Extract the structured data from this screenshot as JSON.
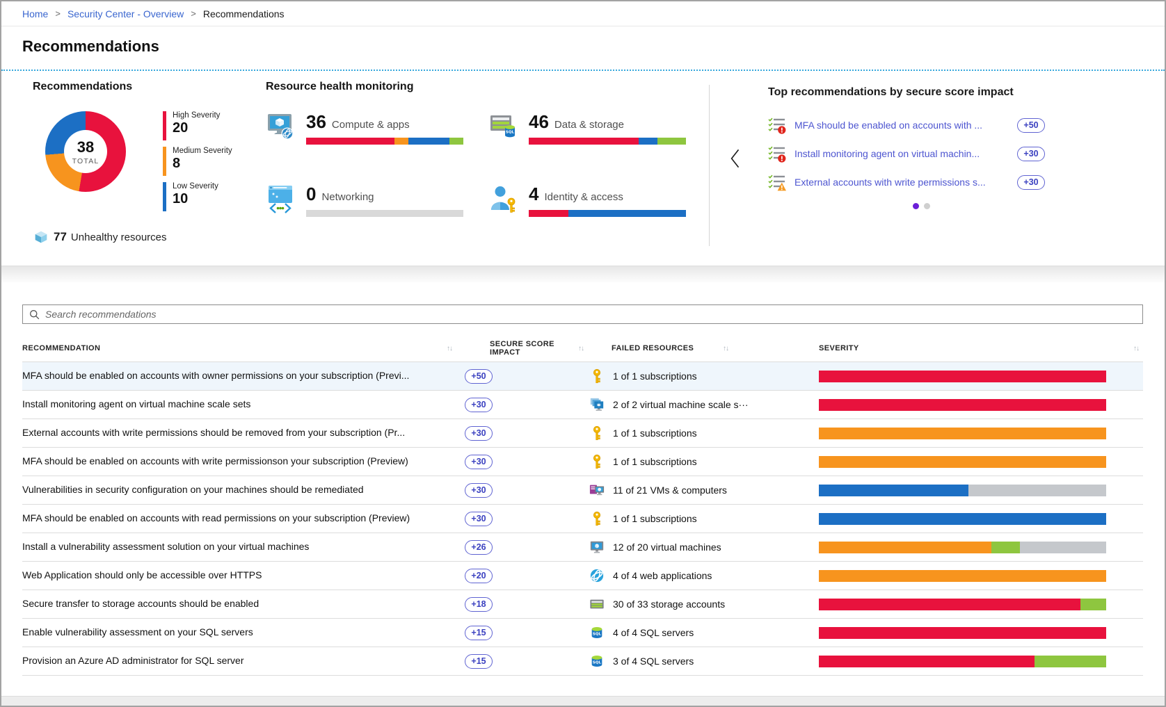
{
  "breadcrumb": {
    "separator": ">",
    "items": [
      {
        "label": "Home",
        "link": true
      },
      {
        "label": "Security Center - Overview",
        "link": true
      },
      {
        "label": "Recommendations",
        "link": false
      }
    ]
  },
  "page_title": "Recommendations",
  "colors": {
    "high": "#e8123d",
    "medium": "#f7941e",
    "low": "#1c6fc4",
    "healthy": "#8ec63f",
    "empty": "#c5c8cc",
    "empty_light": "#d9d9d9",
    "link": "#3a66cf",
    "toprec_link": "#4d55d0",
    "badge_border": "#5f63d2",
    "badge_text": "#3b41c0",
    "dot_active": "#6b1fd8",
    "row_highlight": "#eff6fc"
  },
  "summary": {
    "recommendations": {
      "heading": "Recommendations",
      "donut": {
        "total": "38",
        "total_label": "TOTAL",
        "segments": [
          {
            "label": "High Severity",
            "value": 20,
            "color_key": "high"
          },
          {
            "label": "Medium Severity",
            "value": 8,
            "color_key": "medium"
          },
          {
            "label": "Low Severity",
            "value": 10,
            "color_key": "low"
          }
        ]
      },
      "legend": [
        {
          "label": "High Severity",
          "value": "20",
          "color_key": "high"
        },
        {
          "label": "Medium Severity",
          "value": "8",
          "color_key": "medium"
        },
        {
          "label": "Low Severity",
          "value": "10",
          "color_key": "low"
        }
      ],
      "unhealthy": {
        "count": "77",
        "label": "Unhealthy resources",
        "icon": "cube-icon"
      }
    },
    "resource_health": {
      "heading": "Resource health monitoring",
      "tiles": [
        {
          "icon": "compute-apps-icon",
          "count": "36",
          "label": "Compute & apps",
          "segments": [
            {
              "color_key": "high",
              "pct": 56
            },
            {
              "color_key": "medium",
              "pct": 9
            },
            {
              "color_key": "low",
              "pct": 26
            },
            {
              "color_key": "healthy",
              "pct": 9
            }
          ]
        },
        {
          "icon": "data-storage-icon",
          "count": "46",
          "label": "Data & storage",
          "segments": [
            {
              "color_key": "high",
              "pct": 70
            },
            {
              "color_key": "low",
              "pct": 12
            },
            {
              "color_key": "healthy",
              "pct": 18
            }
          ]
        },
        {
          "icon": "networking-icon",
          "count": "0",
          "label": "Networking",
          "segments": [
            {
              "color_key": "empty_light",
              "pct": 100
            }
          ]
        },
        {
          "icon": "identity-access-icon",
          "count": "4",
          "label": "Identity & access",
          "segments": [
            {
              "color_key": "high",
              "pct": 25
            },
            {
              "color_key": "low",
              "pct": 75
            }
          ]
        }
      ]
    },
    "top_recommendations": {
      "heading": "Top recommendations by secure score impact",
      "items": [
        {
          "label": "MFA should be enabled on accounts with ...",
          "badge": "+50",
          "icon": "checklist-alert-icon"
        },
        {
          "label": "Install monitoring agent on virtual machin...",
          "badge": "+30",
          "icon": "checklist-alert-icon"
        },
        {
          "label": "External accounts with write permissions s...",
          "badge": "+30",
          "icon": "checklist-warning-icon"
        }
      ],
      "carousel": {
        "prev_icon": "chevron-left-icon",
        "dots": [
          {
            "active": true
          },
          {
            "active": false
          }
        ]
      }
    }
  },
  "search": {
    "placeholder": "Search recommendations",
    "icon": "search-icon"
  },
  "table": {
    "sort_icon_glyph": "↑↓",
    "columns": [
      {
        "label": "RECOMMENDATION",
        "sortable": true
      },
      {
        "label": "SECURE SCORE IMPACT",
        "sortable": true
      },
      {
        "label": "FAILED RESOURCES",
        "sortable": true
      },
      {
        "label": "SEVERITY",
        "sortable": true
      }
    ],
    "rows": [
      {
        "recommendation": "MFA should be enabled on accounts with owner permissions on your subscription (Previ...",
        "score": "+50",
        "resource_icon": "key-icon",
        "failed_resources": "1 of 1 subscriptions",
        "highlighted": true,
        "severity_segments": [
          {
            "color_key": "high",
            "pct": 100
          }
        ]
      },
      {
        "recommendation": "Install monitoring agent on virtual machine scale sets",
        "score": "+30",
        "resource_icon": "vm-scale-set-icon",
        "failed_resources": "2 of 2 virtual machine scale s···",
        "highlighted": false,
        "severity_segments": [
          {
            "color_key": "high",
            "pct": 100
          }
        ]
      },
      {
        "recommendation": "External accounts with write permissions should be removed from your subscription (Pr...",
        "score": "+30",
        "resource_icon": "key-icon",
        "failed_resources": "1 of 1 subscriptions",
        "highlighted": false,
        "severity_segments": [
          {
            "color_key": "medium",
            "pct": 100
          }
        ]
      },
      {
        "recommendation": "MFA should be enabled on accounts with write permissionson your subscription (Preview)",
        "score": "+30",
        "resource_icon": "key-icon",
        "failed_resources": "1 of 1 subscriptions",
        "highlighted": false,
        "severity_segments": [
          {
            "color_key": "medium",
            "pct": 100
          }
        ]
      },
      {
        "recommendation": "Vulnerabilities in security configuration on your machines should be remediated",
        "score": "+30",
        "resource_icon": "vms-computers-icon",
        "failed_resources": "11 of 21 VMs & computers",
        "highlighted": false,
        "severity_segments": [
          {
            "color_key": "low",
            "pct": 52
          },
          {
            "color_key": "empty",
            "pct": 48
          }
        ]
      },
      {
        "recommendation": "MFA should be enabled on accounts with read permissions on your subscription (Preview)",
        "score": "+30",
        "resource_icon": "key-icon",
        "failed_resources": "1 of 1 subscriptions",
        "highlighted": false,
        "severity_segments": [
          {
            "color_key": "low",
            "pct": 100
          }
        ]
      },
      {
        "recommendation": "Install a vulnerability assessment solution on your virtual machines",
        "score": "+26",
        "resource_icon": "virtual-machine-icon",
        "failed_resources": "12 of 20 virtual machines",
        "highlighted": false,
        "severity_segments": [
          {
            "color_key": "medium",
            "pct": 60
          },
          {
            "color_key": "healthy",
            "pct": 10
          },
          {
            "color_key": "empty",
            "pct": 30
          }
        ]
      },
      {
        "recommendation": "Web Application should only be accessible over HTTPS",
        "score": "+20",
        "resource_icon": "web-application-icon",
        "failed_resources": "4 of 4 web applications",
        "highlighted": false,
        "severity_segments": [
          {
            "color_key": "medium",
            "pct": 100
          }
        ]
      },
      {
        "recommendation": "Secure transfer to storage accounts should be enabled",
        "score": "+18",
        "resource_icon": "storage-account-icon",
        "failed_resources": "30 of 33 storage accounts",
        "highlighted": false,
        "severity_segments": [
          {
            "color_key": "high",
            "pct": 91
          },
          {
            "color_key": "healthy",
            "pct": 9
          }
        ]
      },
      {
        "recommendation": "Enable vulnerability assessment on your SQL servers",
        "score": "+15",
        "resource_icon": "sql-server-icon",
        "failed_resources": "4 of 4 SQL servers",
        "highlighted": false,
        "severity_segments": [
          {
            "color_key": "high",
            "pct": 100
          }
        ]
      },
      {
        "recommendation": "Provision an Azure AD administrator for SQL server",
        "score": "+15",
        "resource_icon": "sql-server-icon",
        "failed_resources": "3 of 4 SQL servers",
        "highlighted": false,
        "severity_segments": [
          {
            "color_key": "high",
            "pct": 75
          },
          {
            "color_key": "healthy",
            "pct": 25
          }
        ]
      }
    ]
  },
  "chart_data": {
    "type": "pie",
    "title": "Recommendations",
    "categories": [
      "High Severity",
      "Medium Severity",
      "Low Severity"
    ],
    "values": [
      20,
      8,
      10
    ],
    "center_label": "38 TOTAL",
    "legend_position": "right"
  }
}
